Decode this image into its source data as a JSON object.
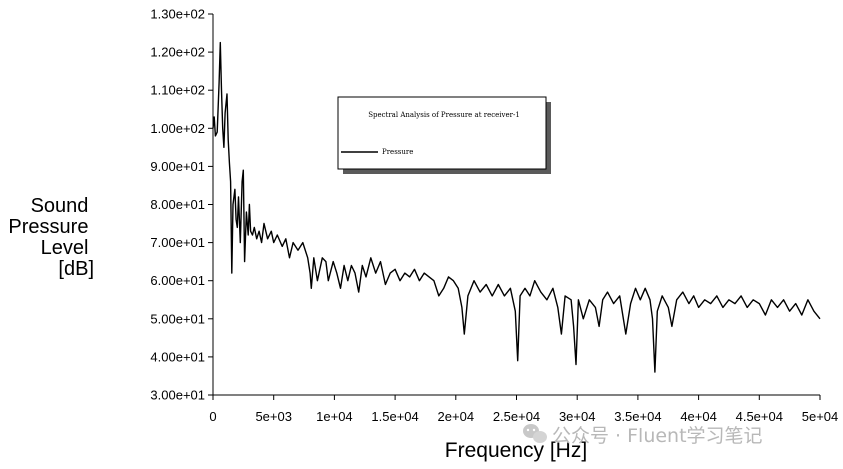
{
  "chart_data": {
    "type": "line",
    "title": "Spectral Analysis of Pressure at receiver-1",
    "xlabel": "Frequency [Hz]",
    "ylabel_lines": [
      "Sound",
      "Pressure",
      "Level",
      "[dB]"
    ],
    "xlim": [
      0,
      50000
    ],
    "ylim": [
      30,
      130
    ],
    "xticks": [
      0,
      5000,
      10000,
      15000,
      20000,
      25000,
      30000,
      35000,
      40000,
      45000,
      50000
    ],
    "xtick_labels": [
      "0",
      "5e+03",
      "1e+04",
      "1.5e+04",
      "2e+04",
      "2.5e+04",
      "3e+04",
      "3.5e+04",
      "4e+04",
      "4.5e+04",
      "5e+04"
    ],
    "yticks": [
      30,
      40,
      50,
      60,
      70,
      80,
      90,
      100,
      110,
      120,
      130
    ],
    "ytick_labels": [
      "3.00e+01",
      "4.00e+01",
      "5.00e+01",
      "6.00e+01",
      "7.00e+01",
      "8.00e+01",
      "9.00e+01",
      "1.00e+02",
      "1.10e+02",
      "1.20e+02",
      "1.30e+02"
    ],
    "grid": false,
    "legend_position": "top-center",
    "line_color": "#000000",
    "series": [
      {
        "name": "Pressure",
        "points": [
          [
            0,
            100
          ],
          [
            100,
            103
          ],
          [
            200,
            98
          ],
          [
            350,
            99
          ],
          [
            500,
            112
          ],
          [
            600,
            122.5
          ],
          [
            700,
            110
          ],
          [
            800,
            100
          ],
          [
            900,
            95
          ],
          [
            1000,
            104
          ],
          [
            1150,
            109
          ],
          [
            1250,
            97
          ],
          [
            1350,
            91
          ],
          [
            1450,
            86
          ],
          [
            1550,
            62
          ],
          [
            1650,
            80
          ],
          [
            1800,
            84
          ],
          [
            1900,
            76
          ],
          [
            2000,
            74
          ],
          [
            2100,
            82
          ],
          [
            2250,
            70
          ],
          [
            2400,
            86
          ],
          [
            2500,
            89
          ],
          [
            2600,
            65
          ],
          [
            2750,
            78
          ],
          [
            2900,
            72
          ],
          [
            3000,
            80
          ],
          [
            3100,
            73
          ],
          [
            3250,
            72
          ],
          [
            3400,
            74
          ],
          [
            3600,
            71
          ],
          [
            3800,
            73
          ],
          [
            4000,
            70
          ],
          [
            4200,
            75
          ],
          [
            4500,
            71
          ],
          [
            4800,
            73
          ],
          [
            5000,
            70
          ],
          [
            5300,
            72
          ],
          [
            5700,
            69
          ],
          [
            6000,
            71
          ],
          [
            6300,
            66
          ],
          [
            6600,
            70
          ],
          [
            7000,
            68
          ],
          [
            7400,
            70
          ],
          [
            7800,
            66
          ],
          [
            8000,
            62
          ],
          [
            8100,
            58
          ],
          [
            8300,
            66
          ],
          [
            8600,
            60
          ],
          [
            9000,
            66
          ],
          [
            9300,
            65
          ],
          [
            9500,
            60
          ],
          [
            9900,
            65
          ],
          [
            10200,
            62
          ],
          [
            10500,
            58
          ],
          [
            10800,
            64
          ],
          [
            11100,
            60
          ],
          [
            11400,
            64
          ],
          [
            11700,
            62
          ],
          [
            12000,
            57
          ],
          [
            12300,
            64
          ],
          [
            12600,
            61
          ],
          [
            13000,
            66
          ],
          [
            13400,
            62
          ],
          [
            13800,
            65
          ],
          [
            14200,
            59
          ],
          [
            14600,
            62
          ],
          [
            15000,
            63
          ],
          [
            15400,
            60
          ],
          [
            15800,
            62
          ],
          [
            16200,
            61
          ],
          [
            16600,
            63
          ],
          [
            17000,
            60
          ],
          [
            17400,
            62
          ],
          [
            17800,
            61
          ],
          [
            18200,
            60
          ],
          [
            18600,
            56
          ],
          [
            19000,
            58
          ],
          [
            19400,
            61
          ],
          [
            19800,
            60
          ],
          [
            20200,
            58
          ],
          [
            20500,
            53
          ],
          [
            20700,
            46
          ],
          [
            21000,
            56
          ],
          [
            21500,
            60
          ],
          [
            22000,
            57
          ],
          [
            22500,
            59
          ],
          [
            23000,
            56
          ],
          [
            23500,
            59
          ],
          [
            24000,
            56
          ],
          [
            24500,
            58
          ],
          [
            24900,
            52
          ],
          [
            25100,
            39
          ],
          [
            25300,
            56
          ],
          [
            25700,
            58
          ],
          [
            26100,
            56
          ],
          [
            26500,
            60
          ],
          [
            27000,
            57
          ],
          [
            27500,
            55
          ],
          [
            28000,
            58
          ],
          [
            28400,
            53
          ],
          [
            28700,
            46
          ],
          [
            29000,
            56
          ],
          [
            29500,
            55
          ],
          [
            29700,
            48
          ],
          [
            29900,
            38
          ],
          [
            30100,
            55
          ],
          [
            30500,
            50
          ],
          [
            31000,
            55
          ],
          [
            31500,
            53
          ],
          [
            31800,
            48
          ],
          [
            32100,
            55
          ],
          [
            32500,
            57
          ],
          [
            33000,
            54
          ],
          [
            33500,
            56
          ],
          [
            34000,
            46
          ],
          [
            34400,
            54
          ],
          [
            34800,
            58
          ],
          [
            35200,
            55
          ],
          [
            35600,
            58
          ],
          [
            36000,
            55
          ],
          [
            36200,
            50
          ],
          [
            36400,
            36
          ],
          [
            36600,
            52
          ],
          [
            37000,
            56
          ],
          [
            37500,
            53
          ],
          [
            37800,
            48
          ],
          [
            38200,
            55
          ],
          [
            38700,
            57
          ],
          [
            39200,
            54
          ],
          [
            39600,
            56
          ],
          [
            40000,
            53
          ],
          [
            40500,
            55
          ],
          [
            41000,
            54
          ],
          [
            41500,
            56
          ],
          [
            42000,
            53
          ],
          [
            42500,
            55
          ],
          [
            43000,
            54
          ],
          [
            43500,
            56
          ],
          [
            44000,
            53
          ],
          [
            44500,
            55
          ],
          [
            45000,
            54
          ],
          [
            45500,
            51
          ],
          [
            46000,
            55
          ],
          [
            46500,
            53
          ],
          [
            47000,
            55
          ],
          [
            47500,
            52
          ],
          [
            48000,
            54
          ],
          [
            48500,
            51
          ],
          [
            49000,
            55
          ],
          [
            49500,
            52
          ],
          [
            50000,
            50
          ]
        ]
      }
    ]
  },
  "watermark": {
    "text": "公众号 · Fluent学习笔记",
    "icon": "wechat-icon"
  }
}
